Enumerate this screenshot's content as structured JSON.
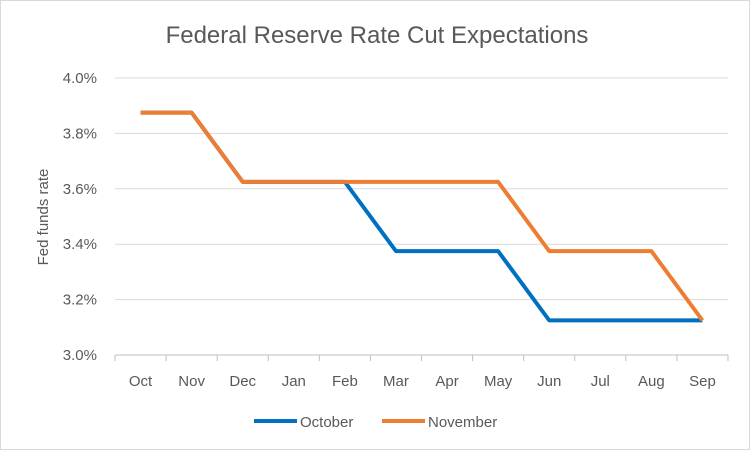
{
  "chart_data": {
    "type": "line",
    "title": "Federal Reserve Rate Cut Expectations",
    "xlabel": "",
    "ylabel": "Fed funds rate",
    "categories": [
      "Oct",
      "Nov",
      "Dec",
      "Jan",
      "Feb",
      "Mar",
      "Apr",
      "May",
      "Jun",
      "Jul",
      "Aug",
      "Sep"
    ],
    "ylim": [
      3.0,
      4.0
    ],
    "yticks": [
      3.0,
      3.2,
      3.4,
      3.6,
      3.8,
      4.0
    ],
    "ytick_labels": [
      "3.0%",
      "3.2%",
      "3.4%",
      "3.6%",
      "3.8%",
      "4.0%"
    ],
    "grid": true,
    "legend_position": "bottom",
    "series": [
      {
        "name": "October",
        "color": "#0070c0",
        "values": [
          3.875,
          3.875,
          3.625,
          3.625,
          3.625,
          3.375,
          3.375,
          3.375,
          3.125,
          3.125,
          3.125,
          3.125
        ]
      },
      {
        "name": "November",
        "color": "#ed7d31",
        "values": [
          3.875,
          3.875,
          3.625,
          3.625,
          3.625,
          3.625,
          3.625,
          3.625,
          3.375,
          3.375,
          3.375,
          3.125
        ]
      }
    ]
  }
}
